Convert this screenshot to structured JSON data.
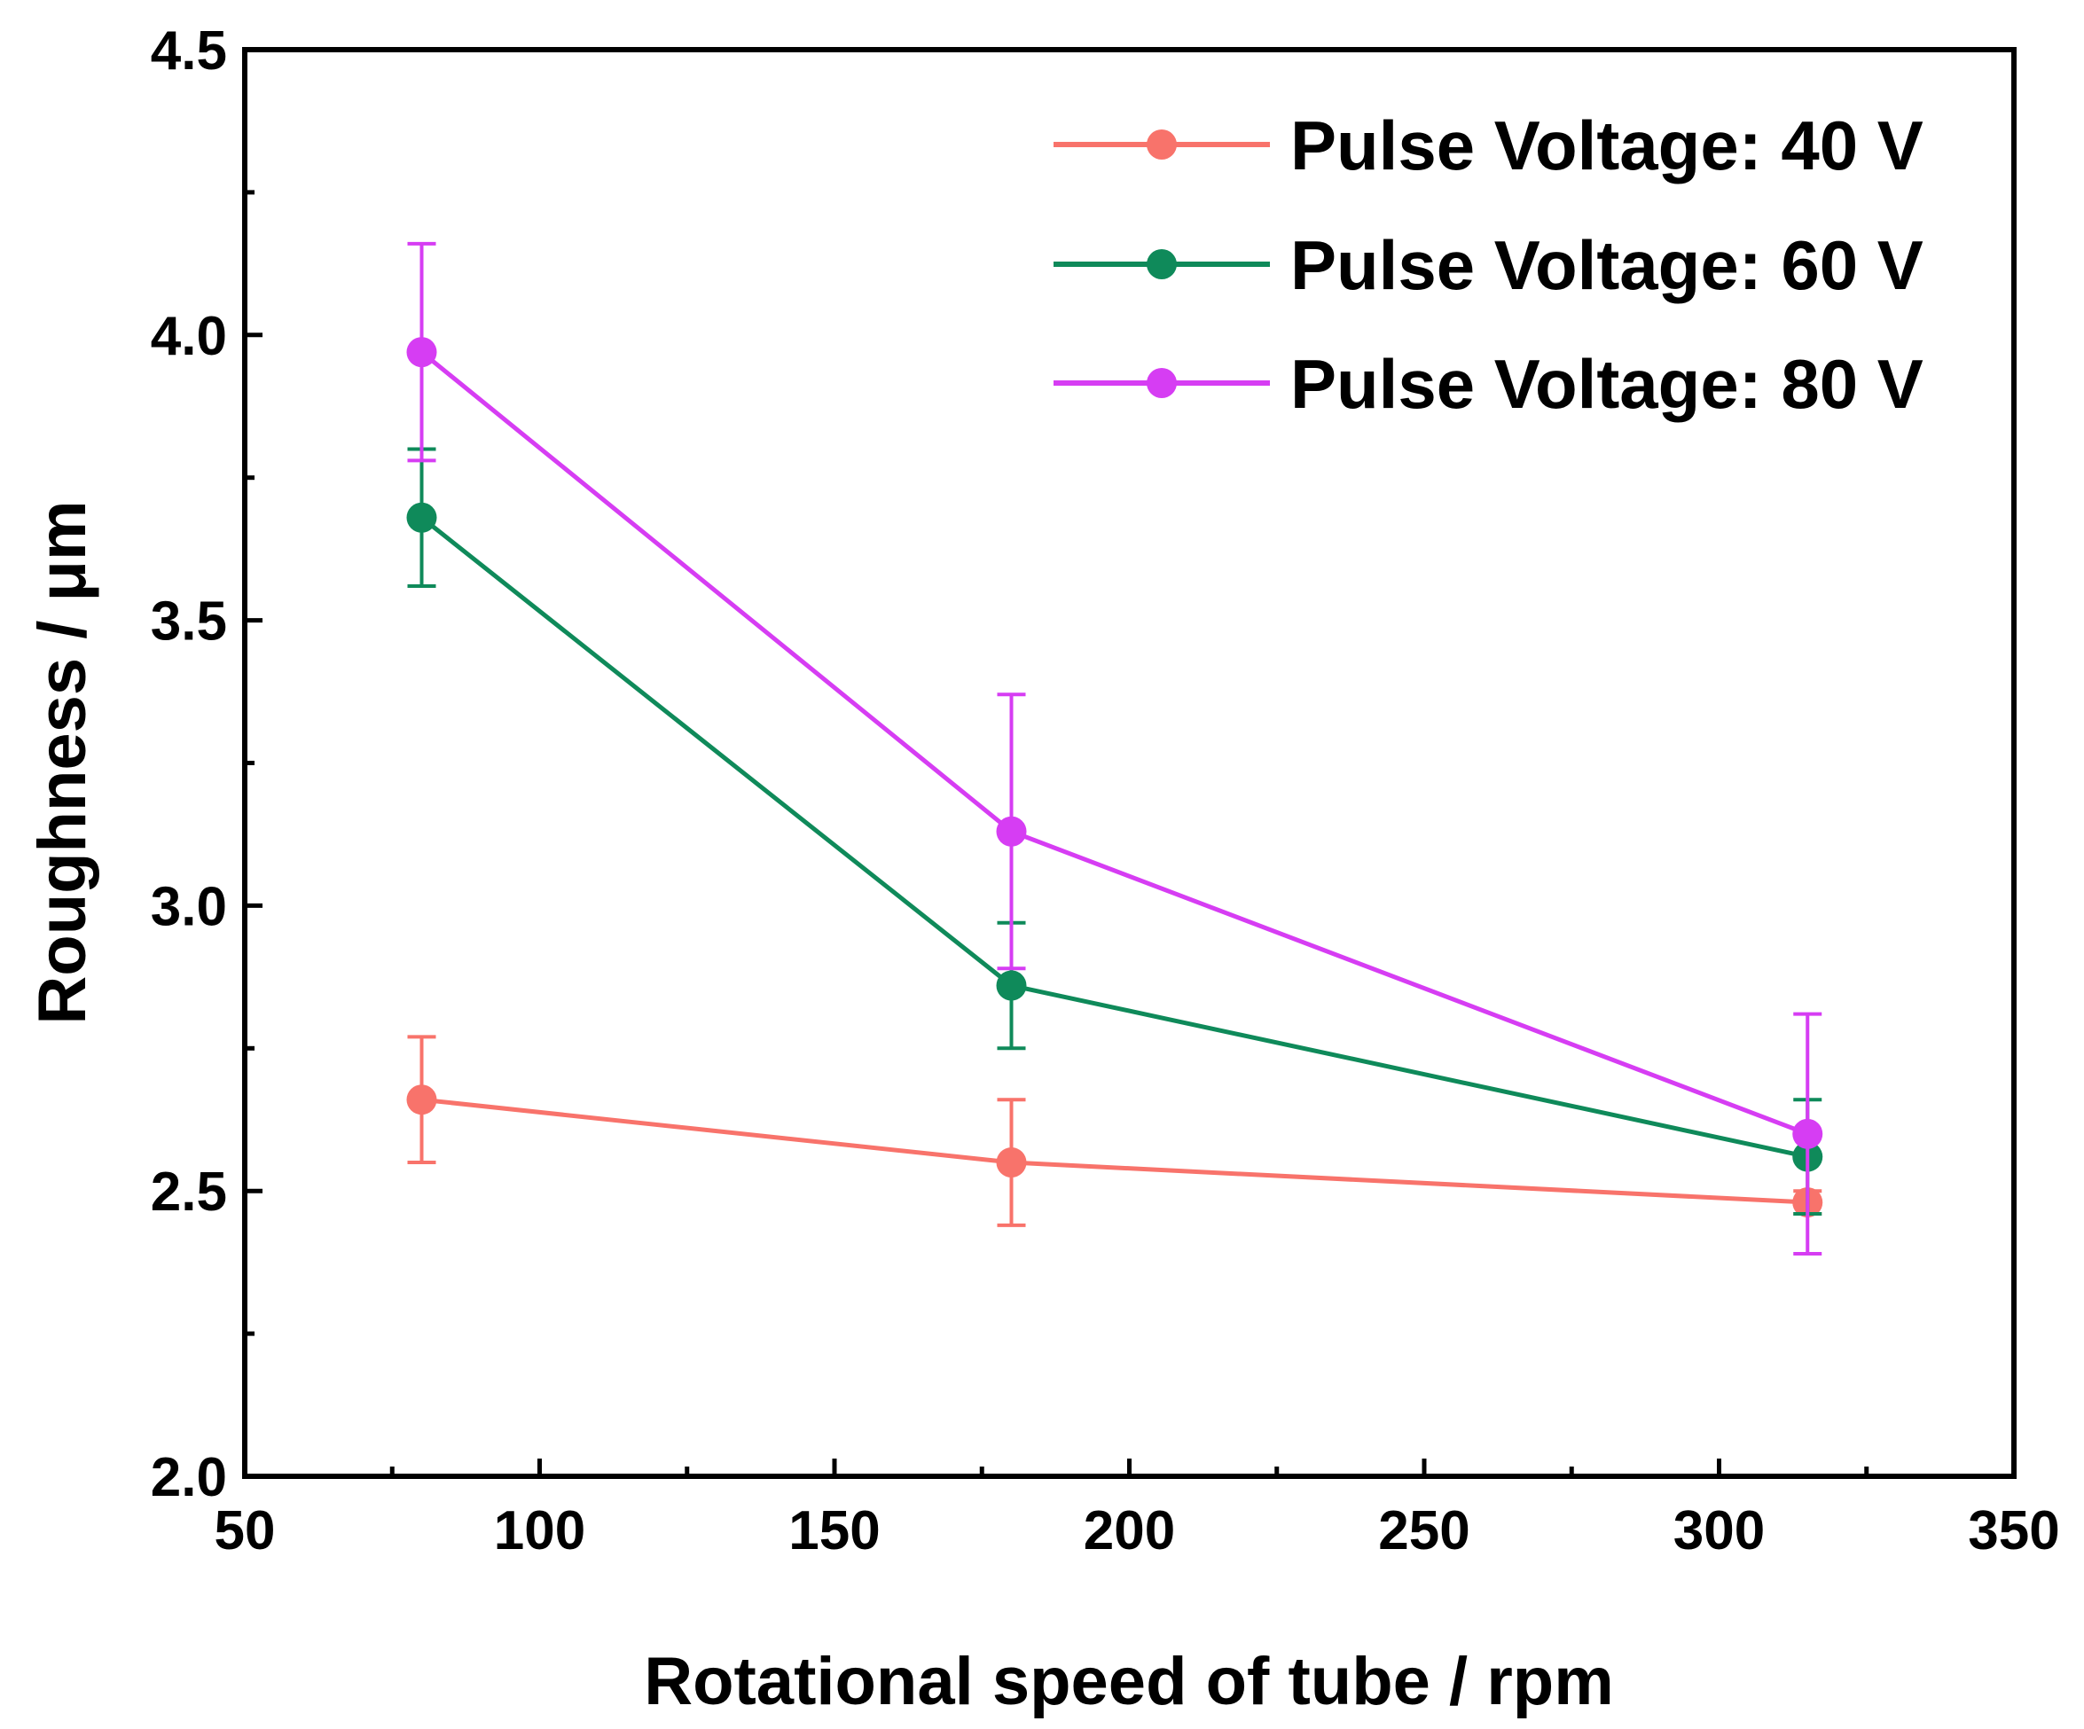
{
  "chart_data": {
    "type": "line",
    "title": "",
    "xlabel": "Rotational speed of tube / rpm",
    "ylabel": "Roughness / μm",
    "xlim": [
      50,
      350
    ],
    "ylim": [
      2.0,
      4.5
    ],
    "x_ticks": [
      50,
      100,
      150,
      200,
      250,
      300,
      350
    ],
    "y_ticks": [
      2.0,
      2.5,
      3.0,
      3.5,
      4.0,
      4.5
    ],
    "x_tick_labels": [
      "50",
      "100",
      "150",
      "200",
      "250",
      "300",
      "350"
    ],
    "y_tick_labels": [
      "2.0",
      "2.5",
      "3.0",
      "3.5",
      "4.0",
      "4.5"
    ],
    "grid": false,
    "legend_position": "top-right",
    "x": [
      80,
      180,
      315
    ],
    "series": [
      {
        "name": "Pulse Voltage: 40 V",
        "color": "#f8736b",
        "values": [
          2.66,
          2.55,
          2.48
        ],
        "errors": [
          0.11,
          0.11,
          0.02
        ]
      },
      {
        "name": "Pulse Voltage: 60 V",
        "color": "#0f8a5a",
        "values": [
          3.68,
          2.86,
          2.56
        ],
        "errors": [
          0.12,
          0.11,
          0.1
        ]
      },
      {
        "name": "Pulse Voltage: 80 V",
        "color": "#d63df3",
        "values": [
          3.97,
          3.13,
          2.6
        ],
        "errors": [
          0.19,
          0.24,
          0.21
        ]
      }
    ]
  }
}
